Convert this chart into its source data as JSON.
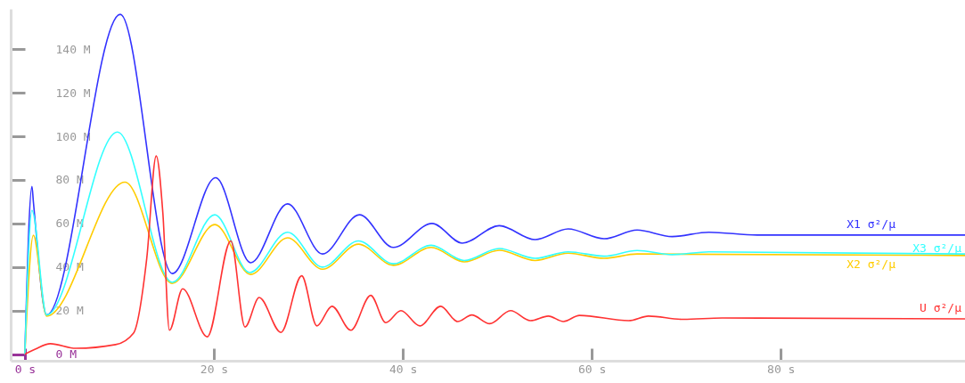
{
  "chart_data": {
    "type": "line",
    "grid": false,
    "marker": "none",
    "line_style": "solid",
    "xlim": [
      -1.5,
      99.5
    ],
    "ylim": [
      -3,
      158.5
    ],
    "xticks": [
      {
        "value": 0,
        "label": "0 s"
      },
      {
        "value": 20,
        "label": "20 s"
      },
      {
        "value": 40,
        "label": "40 s"
      },
      {
        "value": 60,
        "label": "60 s"
      },
      {
        "value": 80,
        "label": "80 s"
      }
    ],
    "yticks": [
      {
        "value": 0,
        "label": "0 M"
      },
      {
        "value": 20,
        "label": "20 M"
      },
      {
        "value": 40,
        "label": "40 M"
      },
      {
        "value": 60,
        "label": "60 M"
      },
      {
        "value": 80,
        "label": "80 M"
      },
      {
        "value": 100,
        "label": "100 M"
      },
      {
        "value": 120,
        "label": "120 M"
      },
      {
        "value": 140,
        "label": "140 M"
      }
    ],
    "series": [
      {
        "name": "X1 σ²/μ",
        "color": "#3333ff",
        "x": [
          0,
          0.75,
          0.9,
          2.3,
          10.1,
          15.6,
          20.2,
          23.9,
          27.8,
          31.5,
          35.4,
          39,
          43.1,
          46.3,
          50.2,
          54,
          57.5,
          61.3,
          64.8,
          68.5,
          72.4,
          77.5,
          99.5
        ],
        "values": [
          0,
          77,
          70,
          18,
          156,
          37,
          81,
          42,
          69,
          46,
          64,
          49,
          60,
          51,
          59,
          52.6,
          57.5,
          53,
          57,
          54,
          56,
          54.7,
          54.7
        ]
      },
      {
        "name": "X2 σ²/μ",
        "color": "#ffcc00",
        "x": [
          0,
          0.9,
          2.3,
          10.6,
          15.6,
          20.1,
          23.9,
          27.8,
          31.5,
          35.3,
          39,
          43,
          46.5,
          50.2,
          54,
          57.5,
          61.3,
          64.8,
          99.5
        ],
        "values": [
          0,
          54.6,
          17.5,
          79,
          32.5,
          59.5,
          36.6,
          53.4,
          39,
          50.5,
          40.8,
          49,
          42.4,
          47.7,
          43,
          46.4,
          44,
          46,
          45.3
        ]
      },
      {
        "name": "X3 σ²/μ",
        "color": "#33ffff",
        "x": [
          0,
          0.75,
          2.3,
          9.8,
          15.6,
          20.1,
          23.8,
          27.8,
          31.5,
          35.3,
          39,
          43,
          46.5,
          50.2,
          54,
          57.5,
          61.3,
          64.8,
          68.5,
          72.4,
          99.5
        ],
        "values": [
          0,
          66,
          18,
          102,
          33,
          64,
          37.5,
          56,
          40,
          52,
          41.5,
          50,
          43,
          48.5,
          44,
          47,
          45,
          47.6,
          45.7,
          47,
          46
        ]
      },
      {
        "name": "U σ²/μ",
        "color": "#ff3333",
        "x": [
          0,
          1.1,
          2.7,
          5.4,
          9.6,
          11.5,
          12.9,
          13.9,
          14.6,
          15.3,
          16.7,
          19.3,
          21.8,
          23.3,
          24.8,
          27.1,
          29.3,
          30.9,
          32.5,
          34.5,
          36.6,
          38.2,
          39.8,
          41.8,
          44,
          45.8,
          47.3,
          49.2,
          51.4,
          53.5,
          55.4,
          57,
          58.7,
          63.9,
          66,
          69.7,
          73.8,
          99.5
        ],
        "values": [
          0,
          2.3,
          4.8,
          2.7,
          4.4,
          9.7,
          44,
          91,
          65,
          11,
          30,
          8,
          52,
          12.5,
          26,
          10,
          36,
          13,
          22,
          11,
          27,
          14.5,
          20,
          13,
          22,
          15,
          18,
          14,
          20,
          15.4,
          17.5,
          15,
          17.8,
          15.4,
          17.5,
          16,
          16.6,
          16.2
        ]
      }
    ]
  }
}
